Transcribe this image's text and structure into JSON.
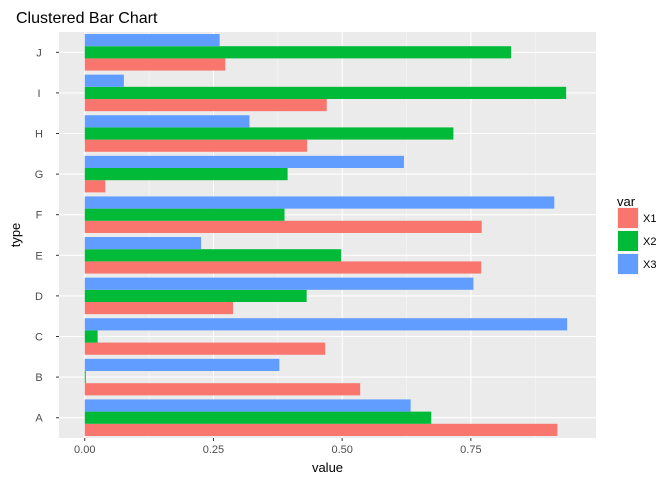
{
  "chart_data": {
    "type": "bar",
    "orientation": "horizontal",
    "title": "Clustered Bar Chart",
    "xlabel": "value",
    "ylabel": "type",
    "categories": [
      "A",
      "B",
      "C",
      "D",
      "E",
      "F",
      "G",
      "H",
      "I",
      "J"
    ],
    "series": [
      {
        "name": "X1",
        "color": "#F8766D",
        "values": [
          0.918,
          0.535,
          0.467,
          0.288,
          0.77,
          0.771,
          0.04,
          0.432,
          0.47,
          0.273
        ]
      },
      {
        "name": "X2",
        "color": "#00BA38",
        "values": [
          0.673,
          0.002,
          0.025,
          0.431,
          0.498,
          0.388,
          0.394,
          0.716,
          0.935,
          0.828
        ]
      },
      {
        "name": "X3",
        "color": "#619CFF",
        "values": [
          0.633,
          0.378,
          0.937,
          0.755,
          0.226,
          0.912,
          0.62,
          0.32,
          0.076,
          0.262
        ]
      }
    ],
    "xlim": [
      -0.05,
      0.993
    ],
    "xticks": [
      "0.00",
      "0.25",
      "0.50",
      "0.75"
    ],
    "xtick_values": [
      0,
      0.25,
      0.5,
      0.75
    ],
    "grid": true,
    "legend": {
      "title": "var",
      "position": "right"
    }
  }
}
